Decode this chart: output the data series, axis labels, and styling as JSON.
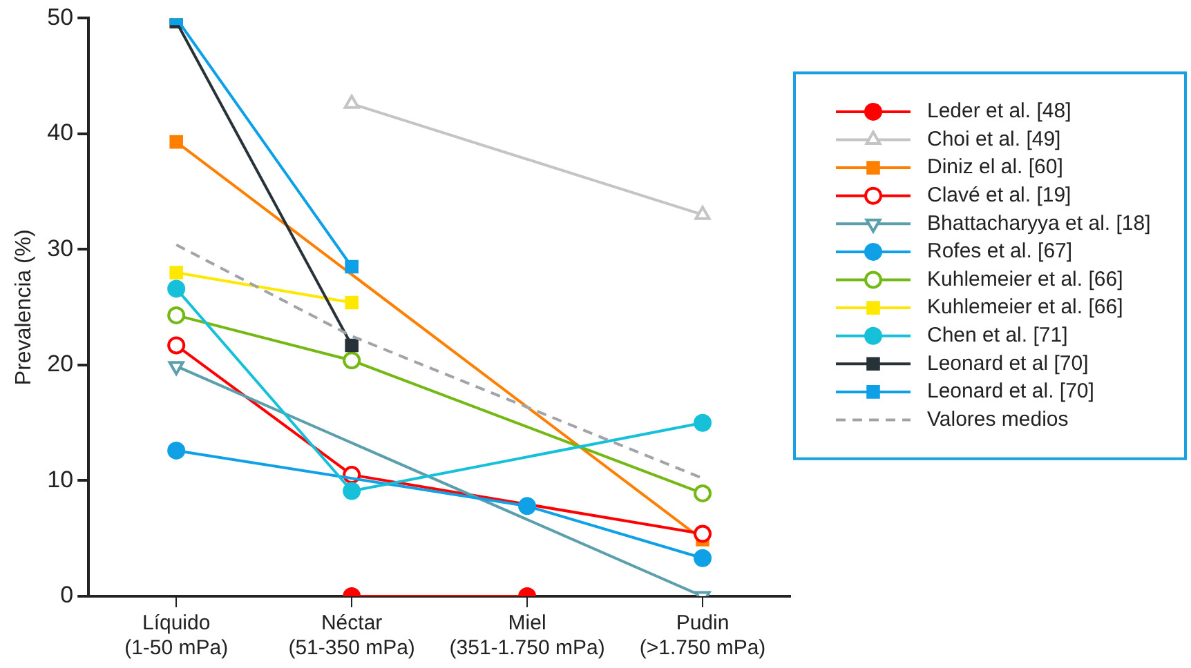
{
  "chart_data": {
    "type": "line",
    "ylabel": "Prevalencia (%)",
    "categories": [
      "Líquido\n(1-50 mPa)",
      "Néctar\n(51-350 mPa)",
      "Miel\n(351-1.750 mPa)",
      "Pudin\n(>1.750 mPa)"
    ],
    "ylim": [
      0,
      50
    ],
    "yticks": [
      0,
      10,
      20,
      30,
      40,
      50
    ],
    "grid": false,
    "legend": "right",
    "line_style": "solid",
    "series": [
      {
        "name": "Leder et al. [48]",
        "color": "#ff0000",
        "marker": "circle",
        "values": [
          null,
          0,
          0,
          null
        ]
      },
      {
        "name": "Choi et al. [49]",
        "color": "#c4c4c4",
        "marker": "triangle-open",
        "values": [
          null,
          42.6,
          null,
          33.0
        ]
      },
      {
        "name": "Diniz el al. [60]",
        "color": "#ff7f00",
        "marker": "square",
        "values": [
          39.3,
          null,
          null,
          4.9
        ]
      },
      {
        "name": "Clavé et al. [19]",
        "color": "#ff0000",
        "marker": "circle-open",
        "values": [
          21.7,
          10.5,
          null,
          5.4
        ]
      },
      {
        "name": "Bhattacharyya et al. [18]",
        "color": "#5b9fad",
        "marker": "triangle-down-open",
        "values": [
          19.9,
          null,
          null,
          0
        ]
      },
      {
        "name": "Rofes et al. [67]",
        "color": "#0fa0e6",
        "marker": "circle",
        "values": [
          12.6,
          null,
          7.8,
          3.3
        ]
      },
      {
        "name": "Kuhlemeier et al. [66]",
        "color": "#74b816",
        "marker": "circle-open",
        "values": [
          24.3,
          20.4,
          null,
          8.9
        ]
      },
      {
        "name": "Kuhlemeier et al. [66]",
        "color": "#ffe800",
        "marker": "square",
        "values": [
          28.0,
          25.4,
          null,
          null
        ]
      },
      {
        "name": "Chen et al. [71]",
        "color": "#16c0d8",
        "marker": "circle",
        "values": [
          26.6,
          9.1,
          null,
          15.0
        ]
      },
      {
        "name": "Leonard et al [70]",
        "color": "#263238",
        "marker": "square",
        "values": [
          49.7,
          21.7,
          null,
          null
        ]
      },
      {
        "name": "Leonard et al. [70]",
        "color": "#0ea0e6",
        "marker": "square",
        "values": [
          50.0,
          28.5,
          null,
          null
        ]
      },
      {
        "name": "Valores medios",
        "color": "#a0a4a8",
        "marker": "none",
        "line_style": "dashed",
        "values": [
          30.4,
          22.5,
          null,
          10.2
        ]
      }
    ]
  }
}
